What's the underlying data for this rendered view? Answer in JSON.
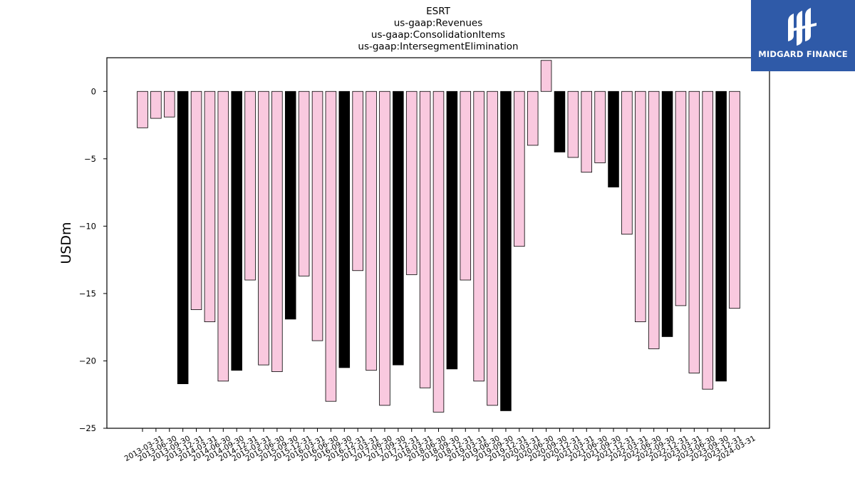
{
  "chart_data": {
    "type": "bar",
    "title_lines": [
      "ESRT",
      "us-gaap:Revenues",
      "us-gaap:ConsolidationItems",
      "us-gaap:IntersegmentElimination"
    ],
    "xlabel": "",
    "ylabel": "USDm",
    "ylim": [
      -25,
      2.5
    ],
    "yticks": [
      0,
      -5,
      -10,
      -15,
      -20,
      -25
    ],
    "categories": [
      "2013-03-31",
      "2013-06-30",
      "2013-09-30",
      "2013-12-31",
      "2014-03-31",
      "2014-06-30",
      "2014-09-30",
      "2014-12-31",
      "2015-03-31",
      "2015-06-30",
      "2015-09-30",
      "2015-12-31",
      "2016-03-31",
      "2016-06-30",
      "2016-09-30",
      "2016-12-31",
      "2017-03-31",
      "2017-06-30",
      "2017-09-30",
      "2017-12-31",
      "2018-03-31",
      "2018-06-30",
      "2018-09-30",
      "2018-12-31",
      "2019-03-31",
      "2019-06-30",
      "2019-09-30",
      "2019-12-31",
      "2020-03-31",
      "2020-06-30",
      "2020-09-30",
      "2020-12-31",
      "2021-03-31",
      "2021-06-30",
      "2021-09-30",
      "2021-12-31",
      "2022-03-31",
      "2022-06-30",
      "2022-09-30",
      "2022-12-31",
      "2023-03-31",
      "2023-06-30",
      "2023-09-30",
      "2023-12-31",
      "2024-03-31"
    ],
    "values": [
      -2.7,
      -2.0,
      -1.9,
      -21.7,
      -16.2,
      -17.1,
      -21.5,
      -20.7,
      -14.0,
      -20.3,
      -20.8,
      -16.9,
      -13.7,
      -18.5,
      -23.0,
      -20.5,
      -13.3,
      -20.7,
      -23.3,
      -20.3,
      -13.6,
      -22.0,
      -23.8,
      -20.6,
      -14.0,
      -21.5,
      -23.3,
      -23.7,
      -11.5,
      -4.0,
      2.3,
      -4.5,
      -4.9,
      -6.0,
      -5.3,
      -7.1,
      -10.6,
      -17.1,
      -19.1,
      -18.2,
      -15.9,
      -20.9,
      -22.1,
      -21.5,
      -16.1
    ],
    "bar_colors": {
      "default": "#f9c9df",
      "highlight": "#000000",
      "edge": "#000000"
    },
    "highlight_categories": [
      "2013-12-31",
      "2014-12-31",
      "2015-12-31",
      "2016-12-31",
      "2017-12-31",
      "2018-12-31",
      "2019-12-31",
      "2020-12-31",
      "2021-12-31",
      "2022-12-31",
      "2023-12-31"
    ],
    "grid": false,
    "legend": "none"
  },
  "logo": {
    "text": "MIDGARD FINANCE",
    "background": "#2f5aa8",
    "foreground": "#ffffff"
  }
}
